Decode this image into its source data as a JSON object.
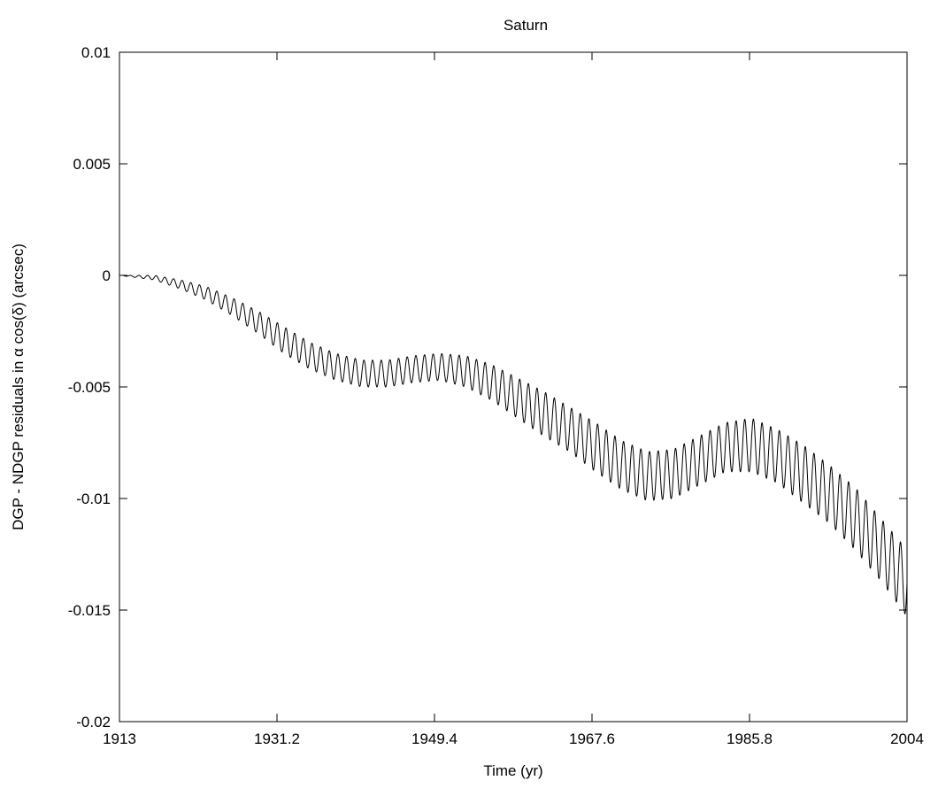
{
  "chart_data": {
    "type": "line",
    "title": "Saturn",
    "xlabel": "Time (yr)",
    "ylabel": "DGP - NDGP residuals in α cos(δ) (arcsec)",
    "xlim": [
      1913,
      2004
    ],
    "ylim": [
      -0.02,
      0.01
    ],
    "x_ticks": [
      "1913",
      "1931.2",
      "1949.4",
      "1967.6",
      "1985.8",
      "2004"
    ],
    "y_ticks": [
      "0.01",
      "0.005",
      "0",
      "-0.005",
      "-0.01",
      "-0.015",
      "-0.02"
    ],
    "grid": false,
    "legend": "none",
    "line_color": "#000000",
    "oscillation_period_yr": 1.0,
    "series": [
      {
        "x": [
          1913,
          1917,
          1920,
          1923,
          1926,
          1929,
          1932,
          1935,
          1938,
          1941,
          1944,
          1947,
          1950,
          1953,
          1956,
          1959,
          1962,
          1965,
          1968,
          1971,
          1974,
          1977,
          1980,
          1983,
          1986,
          1989,
          1992,
          1995,
          1998,
          2001,
          2004
        ],
        "values": [
          0.0,
          -0.0001,
          -0.0004,
          -0.0008,
          -0.0014,
          -0.0021,
          -0.0029,
          -0.0036,
          -0.0041,
          -0.0044,
          -0.0044,
          -0.0042,
          -0.0041,
          -0.0043,
          -0.0048,
          -0.0055,
          -0.0062,
          -0.0069,
          -0.0077,
          -0.0085,
          -0.009,
          -0.0089,
          -0.0083,
          -0.0077,
          -0.0076,
          -0.0081,
          -0.0089,
          -0.0098,
          -0.0109,
          -0.0123,
          -0.0138
        ],
        "amplitude": [
          0.0,
          0.0001,
          0.0002,
          0.0003,
          0.0004,
          0.0005,
          0.0006,
          0.0006,
          0.0006,
          0.0006,
          0.0006,
          0.0006,
          0.0006,
          0.0007,
          0.0008,
          0.0009,
          0.001,
          0.001,
          0.0011,
          0.0011,
          0.0011,
          0.0011,
          0.0011,
          0.0011,
          0.0012,
          0.0012,
          0.0013,
          0.0013,
          0.0014,
          0.0014,
          0.0015
        ]
      }
    ]
  }
}
